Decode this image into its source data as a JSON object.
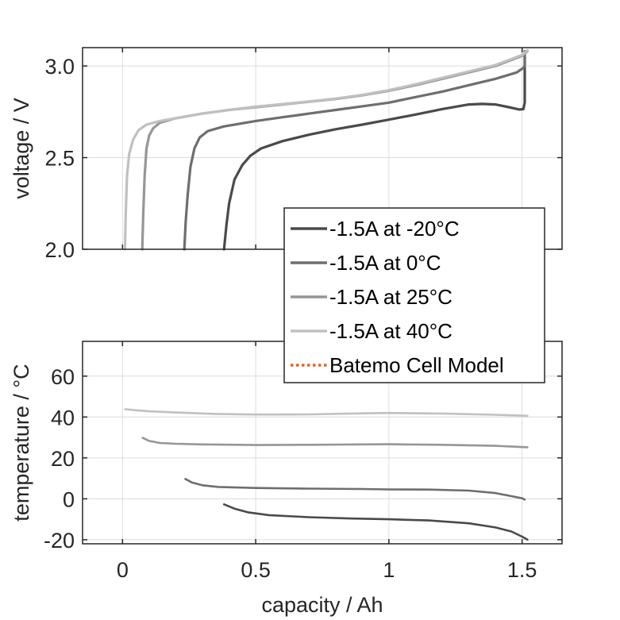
{
  "chart_data": [
    {
      "id": "voltage",
      "type": "line",
      "title": "",
      "xlabel": "",
      "ylabel": "voltage / V",
      "xlim": [
        -0.15,
        1.65
      ],
      "ylim": [
        2.0,
        3.1
      ],
      "xticks": [
        0,
        0.5,
        1,
        1.5
      ],
      "xtick_labels": [
        "",
        "",
        "",
        ""
      ],
      "yticks": [
        2.0,
        2.5,
        3.0
      ],
      "ytick_labels": [
        "2.0",
        "2.5",
        "3.0"
      ],
      "grid": true,
      "series": [
        {
          "name": "-1.5A at -20°C",
          "color": "#4a4a4a",
          "x": [
            0.381,
            0.39,
            0.4,
            0.42,
            0.45,
            0.48,
            0.52,
            0.6,
            0.7,
            0.8,
            0.9,
            1.0,
            1.1,
            1.2,
            1.3,
            1.35,
            1.4,
            1.45,
            1.49,
            1.505,
            1.51,
            1.51
          ],
          "y": [
            2.0,
            2.13,
            2.25,
            2.38,
            2.46,
            2.51,
            2.55,
            2.59,
            2.625,
            2.655,
            2.68,
            2.707,
            2.735,
            2.765,
            2.79,
            2.793,
            2.79,
            2.775,
            2.762,
            2.765,
            2.8,
            3.08
          ]
        },
        {
          "name": "-1.5A at 0°C",
          "color": "#6e6e6e",
          "x": [
            0.232,
            0.237,
            0.245,
            0.255,
            0.27,
            0.29,
            0.32,
            0.38,
            0.5,
            0.6,
            0.7,
            0.8,
            0.9,
            1.0,
            1.1,
            1.2,
            1.3,
            1.4,
            1.48,
            1.505,
            1.51,
            1.51
          ],
          "y": [
            2.0,
            2.15,
            2.3,
            2.45,
            2.55,
            2.61,
            2.645,
            2.67,
            2.7,
            2.72,
            2.74,
            2.76,
            2.78,
            2.8,
            2.83,
            2.86,
            2.895,
            2.93,
            2.965,
            2.99,
            3.0,
            3.08
          ]
        },
        {
          "name": "-1.5A at 25°C",
          "color": "#969696",
          "x": [
            0.074,
            0.078,
            0.083,
            0.09,
            0.1,
            0.115,
            0.14,
            0.2,
            0.3,
            0.4,
            0.5,
            0.6,
            0.7,
            0.8,
            0.9,
            1.0,
            1.1,
            1.2,
            1.3,
            1.4,
            1.5,
            1.52
          ],
          "y": [
            2.0,
            2.2,
            2.4,
            2.55,
            2.62,
            2.66,
            2.69,
            2.715,
            2.74,
            2.76,
            2.775,
            2.79,
            2.805,
            2.82,
            2.84,
            2.865,
            2.895,
            2.93,
            2.965,
            3.0,
            3.055,
            3.08
          ]
        },
        {
          "name": "-1.5A at 40°C",
          "color": "#c0c0c0",
          "x": [
            0.009,
            0.012,
            0.017,
            0.025,
            0.04,
            0.06,
            0.09,
            0.14,
            0.2,
            0.3,
            0.4,
            0.5,
            0.6,
            0.7,
            0.8,
            0.9,
            1.0,
            1.1,
            1.2,
            1.3,
            1.4,
            1.5,
            1.52
          ],
          "y": [
            2.0,
            2.2,
            2.4,
            2.52,
            2.6,
            2.65,
            2.68,
            2.7,
            2.715,
            2.74,
            2.76,
            2.778,
            2.792,
            2.806,
            2.822,
            2.842,
            2.868,
            2.9,
            2.935,
            2.97,
            3.005,
            3.06,
            3.085
          ]
        }
      ]
    },
    {
      "id": "temperature",
      "type": "line",
      "title": "",
      "xlabel": "capacity / Ah",
      "ylabel": "temperature / °C",
      "xlim": [
        -0.15,
        1.65
      ],
      "ylim": [
        -22,
        77
      ],
      "xticks": [
        0,
        0.5,
        1,
        1.5
      ],
      "xtick_labels": [
        "0",
        "0.5",
        "1",
        "1.5"
      ],
      "yticks": [
        -20,
        0,
        20,
        40,
        60
      ],
      "ytick_labels": [
        "-20",
        "0",
        "20",
        "40",
        "60"
      ],
      "grid": true,
      "series": [
        {
          "name": "-1.5A at -20°C",
          "color": "#4a4a4a",
          "x": [
            0.381,
            0.42,
            0.47,
            0.55,
            0.7,
            0.85,
            1.0,
            1.15,
            1.3,
            1.4,
            1.46,
            1.5,
            1.52
          ],
          "y": [
            -2.7,
            -4.8,
            -6.6,
            -8.0,
            -9.0,
            -9.6,
            -10.0,
            -10.6,
            -12.0,
            -14.0,
            -16.0,
            -18.5,
            -20.0
          ]
        },
        {
          "name": "-1.5A at 0°C",
          "color": "#6e6e6e",
          "x": [
            0.236,
            0.26,
            0.3,
            0.36,
            0.5,
            0.7,
            0.9,
            1.0,
            1.15,
            1.3,
            1.4,
            1.5,
            1.51
          ],
          "y": [
            9.7,
            8.0,
            6.6,
            5.8,
            5.3,
            5.0,
            4.8,
            4.6,
            4.5,
            4.0,
            2.8,
            0.3,
            -0.4
          ]
        },
        {
          "name": "-1.5A at 25°C",
          "color": "#969696",
          "x": [
            0.076,
            0.1,
            0.14,
            0.2,
            0.3,
            0.5,
            0.7,
            0.9,
            1.0,
            1.2,
            1.4,
            1.52
          ],
          "y": [
            29.8,
            28.3,
            27.3,
            26.9,
            26.6,
            26.3,
            26.4,
            26.6,
            26.7,
            26.4,
            25.9,
            25.2
          ]
        },
        {
          "name": "-1.5A at 40°C",
          "color": "#c0c0c0",
          "x": [
            0.01,
            0.05,
            0.1,
            0.2,
            0.35,
            0.5,
            0.7,
            0.9,
            1.0,
            1.2,
            1.4,
            1.52
          ],
          "y": [
            43.8,
            43.3,
            42.8,
            42.2,
            41.5,
            41.2,
            41.3,
            41.8,
            42.0,
            41.7,
            41.1,
            40.6
          ]
        }
      ]
    }
  ],
  "legend": {
    "placement": "center-right",
    "entries": [
      {
        "label": "-1.5A at -20°C",
        "color": "#4a4a4a",
        "style": "solid"
      },
      {
        "label": "-1.5A at 0°C",
        "color": "#6e6e6e",
        "style": "solid"
      },
      {
        "label": "-1.5A at 25°C",
        "color": "#969696",
        "style": "solid"
      },
      {
        "label": "-1.5A at 40°C",
        "color": "#c0c0c0",
        "style": "solid"
      },
      {
        "label": "Batemo Cell Model",
        "color": "#e8641e",
        "style": "dotted"
      }
    ]
  }
}
